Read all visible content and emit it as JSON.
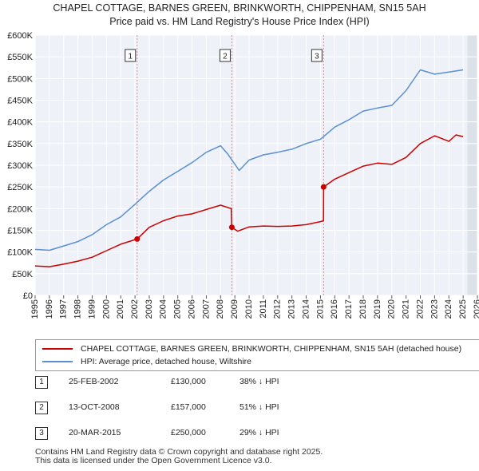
{
  "title_line1": "CHAPEL COTTAGE, BARNES GREEN, BRINKWORTH, CHIPPENHAM, SN15 5AH",
  "title_line2": "Price paid vs. HM Land Registry's House Price Index (HPI)",
  "chart_data": {
    "type": "line",
    "title": "Price paid vs. HM Land Registry's House Price Index (HPI)",
    "xlim": [
      1995,
      2026
    ],
    "ylim": [
      0,
      600000
    ],
    "x_ticks": [
      1995,
      1996,
      1997,
      1998,
      1999,
      2000,
      2001,
      2002,
      2003,
      2004,
      2005,
      2006,
      2007,
      2008,
      2009,
      2010,
      2011,
      2012,
      2013,
      2014,
      2015,
      2016,
      2017,
      2018,
      2019,
      2020,
      2021,
      2022,
      2023,
      2024,
      2025,
      2026
    ],
    "y_ticks": [
      0,
      50000,
      100000,
      150000,
      200000,
      250000,
      300000,
      350000,
      400000,
      450000,
      500000,
      550000,
      600000
    ],
    "y_tick_labels": [
      "£0",
      "£50K",
      "£100K",
      "£150K",
      "£200K",
      "£250K",
      "£300K",
      "£350K",
      "£400K",
      "£450K",
      "£500K",
      "£550K",
      "£600K"
    ],
    "grid": true,
    "series": [
      {
        "name": "CHAPEL COTTAGE, BARNES GREEN, BRINKWORTH, CHIPPENHAM, SN15 5AH (detached house)",
        "color": "#cc0000",
        "points": [
          [
            1995,
            68000
          ],
          [
            1996,
            66000
          ],
          [
            1997,
            72000
          ],
          [
            1998,
            79000
          ],
          [
            1999,
            88000
          ],
          [
            2000,
            103000
          ],
          [
            2001,
            118000
          ],
          [
            2002.15,
            130000
          ],
          [
            2003,
            157000
          ],
          [
            2004,
            172000
          ],
          [
            2005,
            183000
          ],
          [
            2006,
            188000
          ],
          [
            2007,
            198000
          ],
          [
            2008,
            208000
          ],
          [
            2008.75,
            200000
          ],
          [
            2008.78,
            157000
          ],
          [
            2009.2,
            148000
          ],
          [
            2010,
            158000
          ],
          [
            2011,
            160000
          ],
          [
            2012,
            159000
          ],
          [
            2013,
            160000
          ],
          [
            2014,
            163000
          ],
          [
            2015,
            170000
          ],
          [
            2015.21,
            172000
          ],
          [
            2015.22,
            250000
          ],
          [
            2016,
            268000
          ],
          [
            2017,
            283000
          ],
          [
            2018,
            298000
          ],
          [
            2019,
            305000
          ],
          [
            2020,
            302000
          ],
          [
            2021,
            318000
          ],
          [
            2022,
            350000
          ],
          [
            2023,
            368000
          ],
          [
            2024,
            355000
          ],
          [
            2024.5,
            370000
          ],
          [
            2025,
            366000
          ]
        ]
      },
      {
        "name": "HPI: Average price, detached house, Wiltshire",
        "color": "#5b8fd1",
        "points": [
          [
            1995,
            106000
          ],
          [
            1996,
            104000
          ],
          [
            1997,
            114000
          ],
          [
            1998,
            124000
          ],
          [
            1999,
            140000
          ],
          [
            2000,
            163000
          ],
          [
            2001,
            181000
          ],
          [
            2002,
            210000
          ],
          [
            2003,
            240000
          ],
          [
            2004,
            266000
          ],
          [
            2005,
            286000
          ],
          [
            2006,
            306000
          ],
          [
            2007,
            330000
          ],
          [
            2008,
            345000
          ],
          [
            2008.5,
            326000
          ],
          [
            2009.3,
            288000
          ],
          [
            2010,
            312000
          ],
          [
            2011,
            324000
          ],
          [
            2012,
            330000
          ],
          [
            2013,
            337000
          ],
          [
            2014,
            350000
          ],
          [
            2015,
            360000
          ],
          [
            2016,
            388000
          ],
          [
            2017,
            405000
          ],
          [
            2018,
            425000
          ],
          [
            2019,
            432000
          ],
          [
            2020,
            438000
          ],
          [
            2021,
            472000
          ],
          [
            2022,
            520000
          ],
          [
            2023,
            510000
          ],
          [
            2024,
            515000
          ],
          [
            2025,
            520000
          ]
        ]
      }
    ],
    "annotations": [
      {
        "label": "1",
        "x": 2002.15
      },
      {
        "label": "2",
        "x": 2008.79
      },
      {
        "label": "3",
        "x": 2015.22
      }
    ],
    "sale_points": [
      {
        "label": "1",
        "x": 2002.15,
        "y": 130000
      },
      {
        "label": "2",
        "x": 2008.79,
        "y": 157000
      },
      {
        "label": "3",
        "x": 2015.22,
        "y": 250000
      }
    ],
    "future_shade_from": 2025.3
  },
  "legend": {
    "items": [
      {
        "label": "CHAPEL COTTAGE, BARNES GREEN, BRINKWORTH, CHIPPENHAM, SN15 5AH (detached house)",
        "color": "#cc0000"
      },
      {
        "label": "HPI: Average price, detached house, Wiltshire",
        "color": "#5b8fd1"
      }
    ]
  },
  "sales": [
    {
      "num": "1",
      "date": "25-FEB-2002",
      "price": "£130,000",
      "hpi": "38% ↓ HPI"
    },
    {
      "num": "2",
      "date": "13-OCT-2008",
      "price": "£157,000",
      "hpi": "51% ↓ HPI"
    },
    {
      "num": "3",
      "date": "20-MAR-2015",
      "price": "£250,000",
      "hpi": "29% ↓ HPI"
    }
  ],
  "footer": {
    "line1": "Contains HM Land Registry data © Crown copyright and database right 2025.",
    "line2": "This data is licensed under the Open Government Licence v3.0."
  }
}
